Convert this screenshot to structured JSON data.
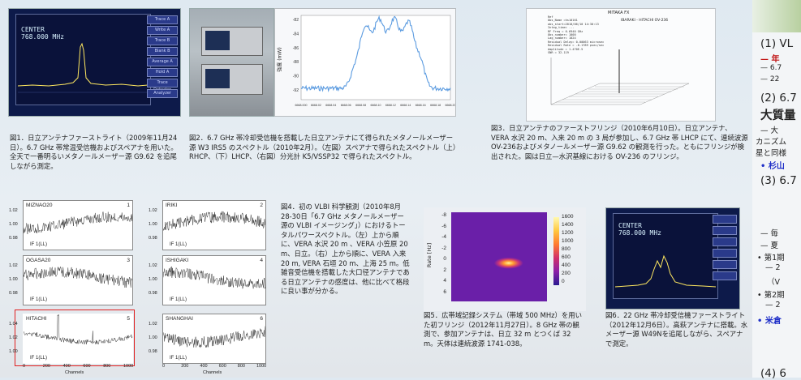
{
  "fig1": {
    "screen_line1": "CENTER",
    "screen_line2": "768.000 MHz",
    "softkeys": [
      "Trace A",
      "Write A",
      "Trace B",
      "Blank B",
      "Average A",
      "Hold A",
      "Trace Detector",
      "Analyzer"
    ],
    "caption": "図1．日立アンテナファーストライト（2009年11月24日）。6.7 GHz 帯常温受信機およびスペアナを用いた。全天で一番明るいメタノールメーザー源 G9.62 を追尾しながら測定。"
  },
  "fig2": {
    "y_label": "強度 (mW)",
    "x_ticks": [
      "6668.000",
      "6668.02",
      "6668.04",
      "6668.06",
      "6668.08",
      "6668.10",
      "6668.12",
      "6668.14",
      "6668.16",
      "6668.18",
      "6668.20"
    ],
    "y_ticks": [
      "-82",
      "-84",
      "-86",
      "-88",
      "-90",
      "-92"
    ],
    "caption": "図2．6.7 GHz 帯冷却受信機を搭載した日立アンテナにて得られたメタノールメーザー源 W3 IRS5 のスペクトル（2010年2月）。（左図）スペアナで得られたスペクトル（上）RHCP、（下）LHCP、（右図）分光計 K5/VSSP32 で得られたスペクトル。"
  },
  "fig3": {
    "plot_title": "MITAKA FX",
    "plot_header": "IBARAKI  - HITACHI   OV-236",
    "info_lines": [
      "Ref    ",
      "Obs_Name  =hs10161",
      "obs_start=2010/06/10 14:30:13",
      "Integ_time=  ...",
      "RF Freq   = 6.6940 GHz",
      "Obs_number=  1000",
      "Lag_number= 1024",
      "Residual Delay= 0.00063 microsec",
      "Residual Rate = -0.1789 psec/sec",
      "Amplitude = 1.470E-5",
      "SNR = 32.119"
    ],
    "caption": "図3．日立アンテナのファーストフリンジ（2010年6月10日）。日立アンテナ、VERA 水沢 20 m、入来 20 m の 3 局が参加し、6.7 GHz 帯 LHCP にて、連続波源 OV-236およびメタノールメーザー源 G9.62 の観測を行った。ともにフリンジが検出された。図は日立—水沢基線における OV-236 のフリンジ。"
  },
  "fig4": {
    "panels": [
      {
        "name": "MIZNAO20",
        "num": "1",
        "if": "IF 1(LL)",
        "y": [
          "1.02",
          "1.00",
          "0.98"
        ]
      },
      {
        "name": "IRIKI",
        "num": "2",
        "if": "IF 1(LL)",
        "y": [
          "1.02",
          "1.00",
          "0.98"
        ]
      },
      {
        "name": "OGASA20",
        "num": "3",
        "if": "IF 1(LL)",
        "y": [
          "1.02",
          "1.00",
          "0.98"
        ]
      },
      {
        "name": "ISHIGAKI",
        "num": "4",
        "if": "IF 1(LL)",
        "y": [
          "1.02",
          "1.00",
          "0.98"
        ]
      },
      {
        "name": "HITACHI",
        "num": "5",
        "if": "IF 1(LL)",
        "y": [
          "1.04",
          "1.02",
          "1.00"
        ]
      },
      {
        "name": "SHANGHAI",
        "num": "6",
        "if": "IF 1(LL)",
        "y": [
          "1.02",
          "1.00",
          "0.98"
        ]
      }
    ],
    "x_ticks": [
      "0",
      "200",
      "400",
      "600",
      "800",
      "1000"
    ],
    "x_label": "Channels",
    "caption": "図4．初の VLBI 科学観測（2010年8月28-30日「6.7 GHz メタノールメーザー源の VLBI イメージング」）におけるトータルパワースペクトル。（左）上から順に、VERA 水沢 20 m 、VERA 小笠原 20 m、日立。（右）上から順に、VERA 入来 20 m, VERA 石垣 20 m、上海 25 m。低雑音受信機を搭載した大口径アンテナである日立アンテナの感度は、他に比べて格段に良い事が分かる。"
  },
  "fig5": {
    "y_label": "Rate [Hz]",
    "y_ticks": [
      "-8",
      "-6",
      "-4",
      "-2",
      "0",
      "2",
      "4",
      "6"
    ],
    "colorbar": [
      "1600",
      "1400",
      "1200",
      "1000",
      "800",
      "600",
      "400",
      "200",
      "0"
    ],
    "caption": "図5．広帯域記録システム（帯域 500 MHz）を用いた初フリンジ（2012年11月27日）。8 GHz 帯の観測で、参加アンテナは、日立 32 m とつくば 32 m。天体は連続波源 1741-038。"
  },
  "fig6": {
    "screen_line1": "CENTER",
    "screen_line2": "768.000 MHz",
    "caption": "図6．22 GHz 帯冷却受信機ファーストライト（2012年12月6日）。高萩アンテナに搭載。水メーザー源 W49Nを追尾しながら、スペアナで測定。"
  },
  "sidebar": {
    "l1": "(1) VL",
    "l2": "— 年",
    "l3": "— 6.7",
    "l4": "— 22",
    "l5": "(2) 6.7",
    "l6": "大質量",
    "l7": "— 大",
    "l8": "カニズム",
    "l9": "星と同様",
    "l10": "• 杉山",
    "l11": "(3) 6.7",
    "l12": "— 毎",
    "l13": "— 夏",
    "l14": "• 第1期",
    "l15": "— 2",
    "l16": "（V",
    "l17": "• 第2期",
    "l18": "— 2",
    "l19": "• 米倉",
    "l20": "(4) 6"
  },
  "colors": {
    "accent_red": "#c01010",
    "accent_blue": "#2030c8",
    "highlight_box": "#e02020"
  }
}
